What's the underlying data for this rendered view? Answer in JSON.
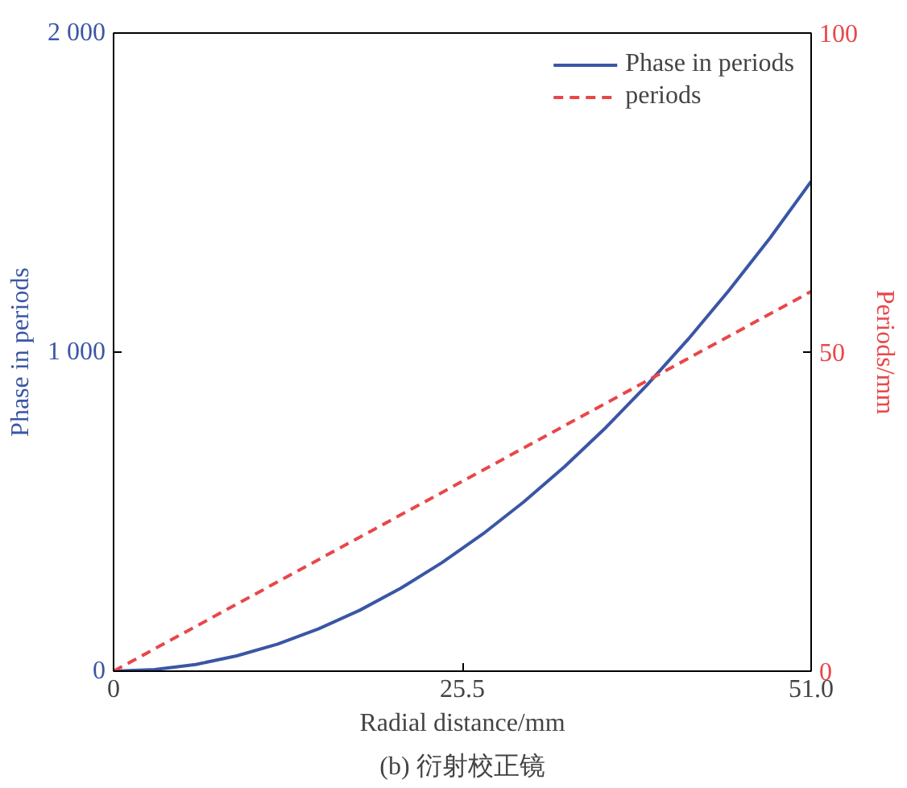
{
  "chart_data": {
    "type": "line",
    "xlabel": "Radial distance/mm",
    "ylabel": "Phase in periods",
    "y2label": "Periods/mm",
    "annotations": [
      "(b) 衍射校正镜"
    ],
    "xlim": [
      0,
      51
    ],
    "xticks": [
      0,
      25.5,
      {
        "value": 51,
        "label": "51.0"
      }
    ],
    "ylim": [
      0,
      2000
    ],
    "yticks": [
      0,
      {
        "value": 1000,
        "label": "1 000"
      },
      {
        "value": 2000,
        "label": "2 000"
      }
    ],
    "y2lim": [
      0,
      100
    ],
    "y2ticks": [
      0,
      50,
      100
    ],
    "grid": false,
    "legend": "top right",
    "marker": "none",
    "series": [
      {
        "name": "Phase in periods",
        "color": "#3a56a5",
        "line_style": "solid",
        "x": [
          0,
          3,
          6,
          9,
          12,
          15,
          18,
          21,
          24,
          27,
          30,
          33,
          36,
          39,
          42,
          45,
          48,
          51
        ],
        "values": [
          0,
          5,
          21,
          48,
          85,
          133,
          191,
          260,
          340,
          430,
          531,
          642,
          764,
          897,
          1040,
          1194,
          1358,
          1535
        ]
      },
      {
        "name": "periods",
        "color": "#e8474a",
        "line_style": "dashed",
        "axis": "y2",
        "x": [
          0,
          51
        ],
        "values": [
          0,
          59.5
        ]
      }
    ]
  }
}
